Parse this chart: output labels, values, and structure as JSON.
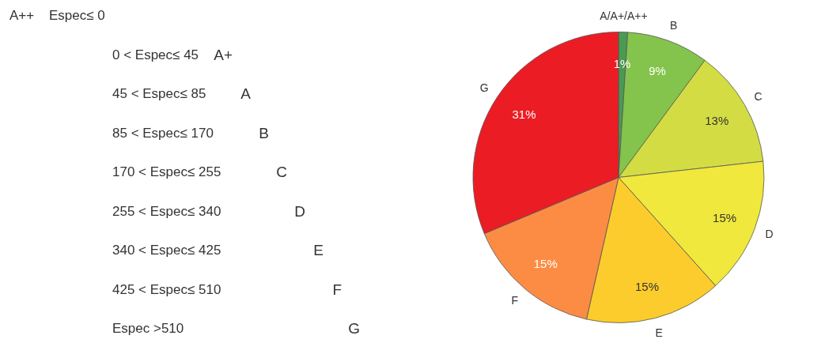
{
  "chart_data": [
    {
      "type": "other",
      "annotations": [
        "A++",
        "Espec≤ 0",
        "0 < Espec≤ 45",
        "A+",
        "45 < Espec≤ 85",
        "A",
        "85 < Espec≤ 170",
        "B",
        "170 < Espec≤ 255",
        "C",
        "255 < Espec≤ 340",
        "D",
        "340 < Espec≤ 425",
        "E",
        "425 < Espec≤ 510",
        "F",
        "Espec >510",
        "G"
      ]
    },
    {
      "type": "pie",
      "categories": [
        "A/A+/A++",
        "B",
        "C",
        "D",
        "E",
        "F",
        "G"
      ],
      "values": [
        1,
        9,
        13,
        15,
        15,
        15,
        31
      ],
      "colors": [
        "#4a9a54",
        "#84c44c",
        "#d4dc44",
        "#f0e83c",
        "#fccc2c",
        "#fc8c44",
        "#ec1c24"
      ],
      "value_labels": [
        "1%",
        "9%",
        "13%",
        "15%",
        "15%",
        "15%",
        "31%"
      ]
    }
  ]
}
